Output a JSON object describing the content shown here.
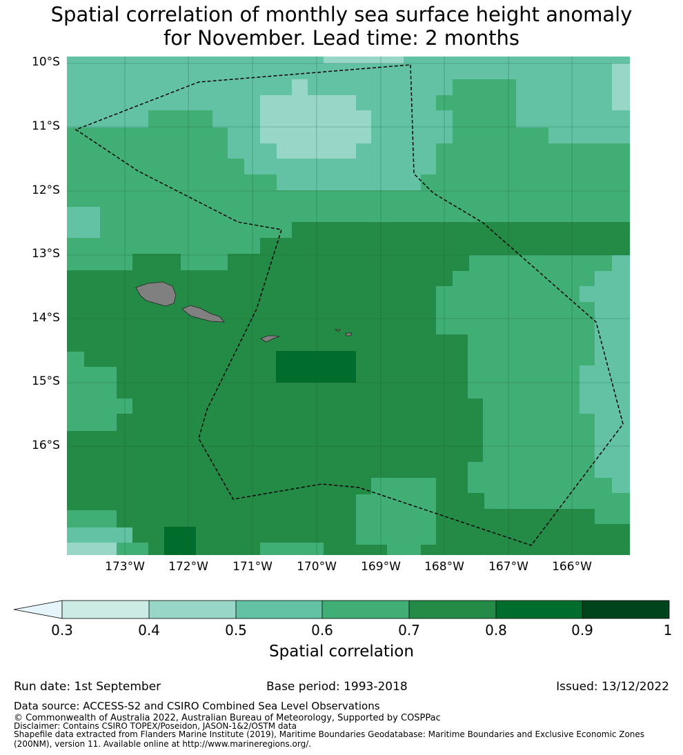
{
  "title": {
    "line1": "Spatial correlation of monthly sea surface height anomaly",
    "line2": "for November. Lead time: 2 months"
  },
  "axes": {
    "lat_labels": [
      "10°S",
      "11°S",
      "12°S",
      "13°S",
      "14°S",
      "15°S",
      "16°S"
    ],
    "lon_labels": [
      "173°W",
      "172°W",
      "171°W",
      "170°W",
      "169°W",
      "168°W",
      "167°W",
      "166°W"
    ]
  },
  "colorbar": {
    "ticks": [
      "0.3",
      "0.4",
      "0.5",
      "0.6",
      "0.7",
      "0.8",
      "0.9",
      "1"
    ],
    "label": "Spatial correlation",
    "colors": [
      "#ccebe5",
      "#98d6c8",
      "#63c2a4",
      "#41ae76",
      "#238b45",
      "#006d2c",
      "#00441b"
    ],
    "extend_color": "#e5f5f9"
  },
  "footer": {
    "run_date": "Run date: 1st September",
    "base_period": "Base period: 1993-2018",
    "issued": "Issued: 13/12/2022",
    "data_source": "Data source: ACCESS-S2 and CSIRO Combined Sea Level Observations",
    "copyright": "© Commonwealth of Australia 2022, Australian Bureau of Meteorology, Supported by COSPPac",
    "disclaimer": "Disclaimer: Contains CSIRO TOPEX/Poseidon, JASON-1&2/OSTM data",
    "shapefile1": "Shapefile data extracted from Flanders Marine Institute (2019), Maritime Boundaries Geodatabase: Maritime Boundaries and Exclusive Economic Zones",
    "shapefile2": "(200NM), version 11. Available online at http://www.marineregions.org/."
  }
}
